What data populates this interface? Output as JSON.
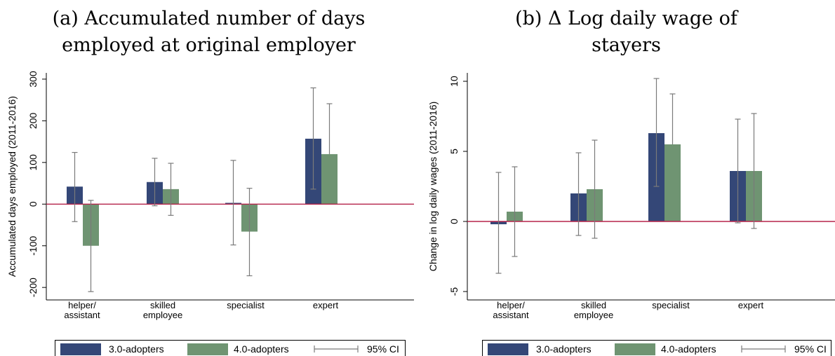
{
  "colors": {
    "adopters30": "#344777",
    "adopters40": "#6f9472",
    "ci": "#7a7a7a",
    "zero_line": "#b5234a"
  },
  "legend": {
    "s1": "3.0-adopters",
    "s2": "4.0-adopters",
    "ci": "95% CI"
  },
  "chart_data": [
    {
      "id": "a",
      "type": "bar",
      "title_lines": [
        "(a) Accumulated number of days",
        "employed at original employer"
      ],
      "ylabel": "Accumulated days employed (2011-2016)",
      "xlabel": "",
      "categories": [
        [
          "helper/",
          "assistant"
        ],
        [
          "skilled",
          "employee"
        ],
        [
          "specialist"
        ],
        [
          "expert"
        ]
      ],
      "ylim": [
        -230,
        315
      ],
      "yticks": [
        -200,
        -100,
        0,
        100,
        200,
        300
      ],
      "reference_line": 0,
      "series": [
        {
          "name": "3.0-adopters",
          "values": [
            42,
            53,
            3,
            157
          ],
          "ci_low": [
            -42,
            -4,
            -98,
            36
          ],
          "ci_high": [
            124,
            110,
            105,
            279
          ]
        },
        {
          "name": "4.0-adopters",
          "values": [
            -100,
            36,
            -66,
            120
          ],
          "ci_low": [
            -210,
            -27,
            -172,
            null
          ],
          "ci_high": [
            9,
            98,
            38,
            241
          ]
        }
      ],
      "legend_position": "bottom",
      "grid": false
    },
    {
      "id": "b",
      "type": "bar",
      "title_lines": [
        "(b) Δ Log daily wage of",
        "stayers"
      ],
      "ylabel": "Change in log daily wages (2011-2016)",
      "xlabel": "",
      "categories": [
        [
          "helper/",
          "assistant"
        ],
        [
          "skilled",
          "employee"
        ],
        [
          "specialist"
        ],
        [
          "expert"
        ]
      ],
      "ylim": [
        -5.6,
        10.6
      ],
      "yticks": [
        -5,
        0,
        5,
        10
      ],
      "reference_line": 0,
      "series": [
        {
          "name": "3.0-adopters",
          "values": [
            -0.2,
            2.0,
            6.3,
            3.6
          ],
          "ci_low": [
            -3.7,
            -1.0,
            2.5,
            -0.1
          ],
          "ci_high": [
            3.5,
            4.9,
            10.2,
            7.3
          ]
        },
        {
          "name": "4.0-adopters",
          "values": [
            0.7,
            2.3,
            5.5,
            3.6
          ],
          "ci_low": [
            -2.5,
            -1.2,
            null,
            -0.5
          ],
          "ci_high": [
            3.9,
            5.8,
            9.1,
            7.7
          ]
        }
      ],
      "legend_position": "bottom",
      "grid": false
    }
  ]
}
